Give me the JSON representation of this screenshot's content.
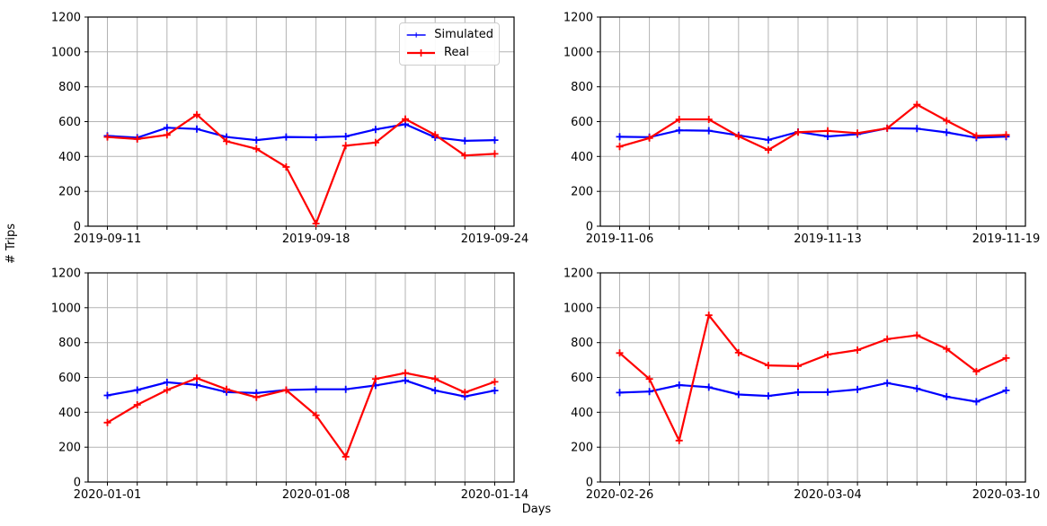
{
  "figure": {
    "ylabel": "# Trips",
    "xlabel": "Days",
    "background": "#ffffff"
  },
  "legend": {
    "items": [
      {
        "label": "Simulated",
        "color": "#0000ff"
      },
      {
        "label": "Real",
        "color": "#ff0000"
      }
    ]
  },
  "style": {
    "simulated_color": "#0000ff",
    "real_color": "#ff0000",
    "grid_color": "#b3b3b3",
    "axis_color": "#000000",
    "marker": "plus"
  },
  "chart_data": [
    {
      "type": "line",
      "panel": "top-left",
      "grid": true,
      "ylim": [
        0,
        1200
      ],
      "y_ticks": [
        0,
        200,
        400,
        600,
        800,
        1000,
        1200
      ],
      "x_tick_labels": [
        "2019-09-11",
        "2019-09-18",
        "2019-09-24"
      ],
      "x_tick_positions": [
        0,
        7,
        13
      ],
      "categories": [
        "2019-09-11",
        "2019-09-12",
        "2019-09-13",
        "2019-09-14",
        "2019-09-15",
        "2019-09-16",
        "2019-09-17",
        "2019-09-18",
        "2019-09-19",
        "2019-09-20",
        "2019-09-21",
        "2019-09-22",
        "2019-09-23",
        "2019-09-24"
      ],
      "series": [
        {
          "name": "Simulated",
          "color": "#0000ff",
          "values": [
            518,
            508,
            565,
            558,
            512,
            494,
            512,
            510,
            515,
            555,
            585,
            510,
            490,
            494
          ]
        },
        {
          "name": "Real",
          "color": "#ff0000",
          "values": [
            512,
            500,
            524,
            640,
            487,
            444,
            340,
            15,
            462,
            480,
            615,
            524,
            406,
            415
          ]
        }
      ]
    },
    {
      "type": "line",
      "panel": "top-right",
      "grid": true,
      "ylim": [
        0,
        1200
      ],
      "y_ticks": [
        0,
        200,
        400,
        600,
        800,
        1000,
        1200
      ],
      "x_tick_labels": [
        "2019-11-06",
        "2019-11-13",
        "2019-11-19"
      ],
      "x_tick_positions": [
        0,
        7,
        13
      ],
      "categories": [
        "2019-11-06",
        "2019-11-07",
        "2019-11-08",
        "2019-11-09",
        "2019-11-10",
        "2019-11-11",
        "2019-11-12",
        "2019-11-13",
        "2019-11-14",
        "2019-11-15",
        "2019-11-16",
        "2019-11-17",
        "2019-11-18",
        "2019-11-19"
      ],
      "series": [
        {
          "name": "Simulated",
          "color": "#0000ff",
          "values": [
            513,
            511,
            550,
            548,
            521,
            495,
            541,
            515,
            528,
            562,
            560,
            538,
            508,
            514
          ]
        },
        {
          "name": "Real",
          "color": "#ff0000",
          "values": [
            457,
            506,
            613,
            613,
            516,
            437,
            539,
            547,
            534,
            562,
            698,
            605,
            518,
            524
          ]
        }
      ]
    },
    {
      "type": "line",
      "panel": "bottom-left",
      "grid": true,
      "ylim": [
        0,
        1200
      ],
      "y_ticks": [
        0,
        200,
        400,
        600,
        800,
        1000,
        1200
      ],
      "x_tick_labels": [
        "2020-01-01",
        "2020-01-08",
        "2020-01-14"
      ],
      "x_tick_positions": [
        0,
        7,
        13
      ],
      "categories": [
        "2020-01-01",
        "2020-01-02",
        "2020-01-03",
        "2020-01-04",
        "2020-01-05",
        "2020-01-06",
        "2020-01-07",
        "2020-01-08",
        "2020-01-09",
        "2020-01-10",
        "2020-01-11",
        "2020-01-12",
        "2020-01-13",
        "2020-01-14"
      ],
      "series": [
        {
          "name": "Simulated",
          "color": "#0000ff",
          "values": [
            497,
            528,
            572,
            557,
            516,
            511,
            528,
            532,
            532,
            554,
            583,
            525,
            491,
            525
          ]
        },
        {
          "name": "Real",
          "color": "#ff0000",
          "values": [
            341,
            443,
            528,
            596,
            532,
            486,
            528,
            383,
            145,
            591,
            626,
            591,
            514,
            575
          ]
        }
      ]
    },
    {
      "type": "line",
      "panel": "bottom-right",
      "grid": true,
      "ylim": [
        0,
        1200
      ],
      "y_ticks": [
        0,
        200,
        400,
        600,
        800,
        1000,
        1200
      ],
      "x_tick_labels": [
        "2020-02-26",
        "2020-03-04",
        "2020-03-10"
      ],
      "x_tick_positions": [
        0,
        7,
        13
      ],
      "categories": [
        "2020-02-26",
        "2020-02-27",
        "2020-02-28",
        "2020-02-29",
        "2020-03-01",
        "2020-03-02",
        "2020-03-03",
        "2020-03-04",
        "2020-03-05",
        "2020-03-06",
        "2020-03-07",
        "2020-03-08",
        "2020-03-09",
        "2020-03-10"
      ],
      "series": [
        {
          "name": "Simulated",
          "color": "#0000ff",
          "values": [
            513,
            519,
            556,
            544,
            502,
            494,
            515,
            516,
            531,
            568,
            536,
            490,
            461,
            526
          ]
        },
        {
          "name": "Real",
          "color": "#ff0000",
          "values": [
            740,
            591,
            238,
            957,
            742,
            669,
            665,
            731,
            757,
            820,
            842,
            764,
            634,
            711
          ]
        }
      ]
    }
  ]
}
